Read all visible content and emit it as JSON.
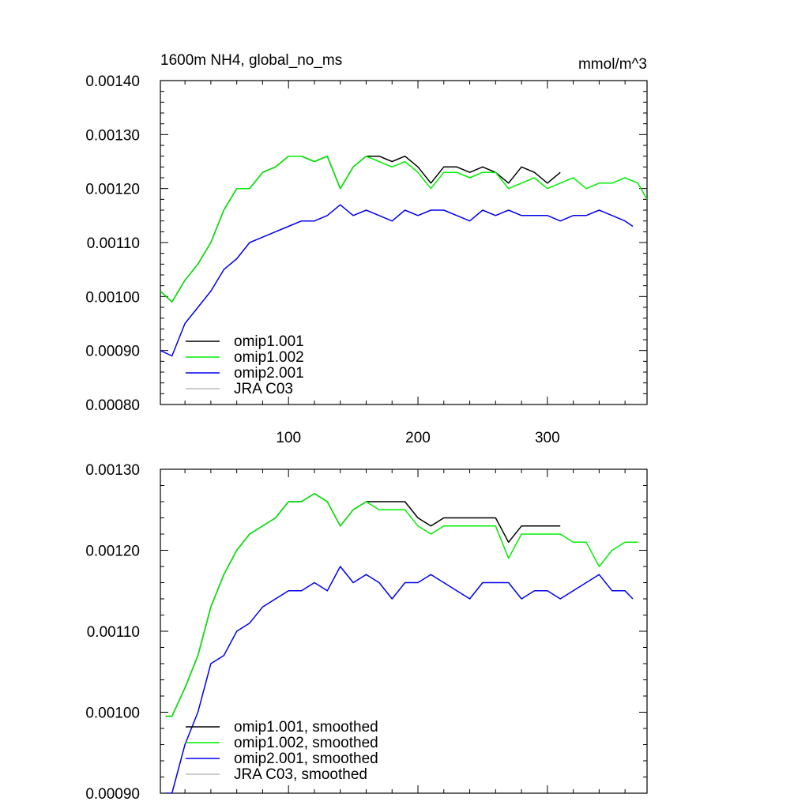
{
  "title": "1600m NH4, global_no_ms",
  "units": "mmol/m^3",
  "colors": {
    "omip1_001": "#000000",
    "omip1_002": "#00ee00",
    "omip2_001": "#0000ee",
    "jra_c03": "#bbbbbb"
  },
  "chart_data": [
    {
      "type": "line",
      "title": "1600m NH4, global_no_ms",
      "units": "mmol/m^3",
      "xlabel": "",
      "ylabel": "",
      "xlim": [
        1,
        377
      ],
      "ylim": [
        0.0008,
        0.0014
      ],
      "xticks": [
        100,
        200,
        300
      ],
      "xtick_labels": [
        "100",
        "200",
        "300"
      ],
      "yticks": [
        0.0008,
        0.0009,
        0.001,
        0.0011,
        0.0012,
        0.0013,
        0.0014
      ],
      "ytick_labels": [
        "0.00080",
        "0.00090",
        "0.00100",
        "0.00110",
        "0.00120",
        "0.00130",
        "0.00140"
      ],
      "legend_position": "bottom-left",
      "series": [
        {
          "name": "omip1.001",
          "color_key": "omip1_001",
          "x": [
            1,
            10,
            20,
            30,
            40,
            50,
            60,
            70,
            80,
            90,
            100,
            110,
            120,
            130,
            140,
            150,
            160,
            170,
            180,
            190,
            200,
            210,
            220,
            230,
            240,
            250,
            260,
            270,
            280,
            290,
            300,
            310
          ],
          "y": [
            0.00101,
            0.00099,
            0.00103,
            0.00106,
            0.0011,
            0.00116,
            0.0012,
            0.0012,
            0.00123,
            0.00124,
            0.00126,
            0.00126,
            0.00125,
            0.00126,
            0.0012,
            0.00124,
            0.00126,
            0.00126,
            0.00125,
            0.00126,
            0.00124,
            0.00121,
            0.00124,
            0.00124,
            0.00123,
            0.00124,
            0.00123,
            0.00121,
            0.00124,
            0.00123,
            0.00121,
            0.00123
          ]
        },
        {
          "name": "omip1.002",
          "color_key": "omip1_002",
          "x": [
            1,
            10,
            20,
            30,
            40,
            50,
            60,
            70,
            80,
            90,
            100,
            110,
            120,
            130,
            140,
            150,
            160,
            170,
            180,
            190,
            200,
            210,
            220,
            230,
            240,
            250,
            260,
            270,
            280,
            290,
            300,
            310,
            320,
            330,
            340,
            350,
            360,
            370,
            377
          ],
          "y": [
            0.00101,
            0.00099,
            0.00103,
            0.00106,
            0.0011,
            0.00116,
            0.0012,
            0.0012,
            0.00123,
            0.00124,
            0.00126,
            0.00126,
            0.00125,
            0.00126,
            0.0012,
            0.00124,
            0.00126,
            0.00125,
            0.00124,
            0.00125,
            0.00123,
            0.0012,
            0.00123,
            0.00123,
            0.00122,
            0.00123,
            0.00123,
            0.0012,
            0.00121,
            0.00122,
            0.0012,
            0.00121,
            0.00122,
            0.0012,
            0.00121,
            0.00121,
            0.00122,
            0.00121,
            0.00118
          ]
        },
        {
          "name": "omip2.001",
          "color_key": "omip2_001",
          "x": [
            1,
            10,
            20,
            30,
            40,
            50,
            60,
            70,
            80,
            90,
            100,
            110,
            120,
            130,
            140,
            150,
            160,
            170,
            180,
            190,
            200,
            210,
            220,
            230,
            240,
            250,
            260,
            270,
            280,
            290,
            300,
            310,
            320,
            330,
            340,
            350,
            360,
            366
          ],
          "y": [
            0.0009,
            0.00089,
            0.00095,
            0.00098,
            0.00101,
            0.00105,
            0.00107,
            0.0011,
            0.00111,
            0.00112,
            0.00113,
            0.00114,
            0.00114,
            0.00115,
            0.00117,
            0.00115,
            0.00116,
            0.00115,
            0.00114,
            0.00116,
            0.00115,
            0.00116,
            0.00116,
            0.00115,
            0.00114,
            0.00116,
            0.00115,
            0.00116,
            0.00115,
            0.00115,
            0.00115,
            0.00114,
            0.00115,
            0.00115,
            0.00116,
            0.00115,
            0.00114,
            0.00113
          ]
        },
        {
          "name": "JRA C03",
          "color_key": "jra_c03",
          "x": [],
          "y": []
        }
      ]
    },
    {
      "type": "line",
      "title": "",
      "xlabel": "",
      "ylabel": "",
      "xlim": [
        1,
        377
      ],
      "ylim": [
        0.0009,
        0.0013
      ],
      "xticks": [
        100,
        200,
        300
      ],
      "xtick_labels": [],
      "yticks": [
        0.0009,
        0.001,
        0.0011,
        0.0012,
        0.0013
      ],
      "ytick_labels": [
        "0.00090",
        "0.00100",
        "0.00110",
        "0.00120",
        "0.00130"
      ],
      "legend_position": "bottom-left",
      "series": [
        {
          "name": "omip1.001, smoothed",
          "color_key": "omip1_001",
          "x": [
            5,
            10,
            20,
            30,
            40,
            50,
            60,
            70,
            80,
            90,
            100,
            110,
            120,
            130,
            140,
            150,
            160,
            170,
            180,
            190,
            200,
            210,
            220,
            230,
            240,
            250,
            260,
            270,
            280,
            290,
            300,
            310
          ],
          "y": [
            0.000995,
            0.000995,
            0.00103,
            0.00107,
            0.00113,
            0.00117,
            0.0012,
            0.00122,
            0.00123,
            0.00124,
            0.00126,
            0.00126,
            0.00127,
            0.00126,
            0.00123,
            0.00125,
            0.00126,
            0.00126,
            0.00126,
            0.00126,
            0.00124,
            0.00123,
            0.00124,
            0.00124,
            0.00124,
            0.00124,
            0.00124,
            0.00121,
            0.00123,
            0.00123,
            0.00123,
            0.00123
          ]
        },
        {
          "name": "omip1.002, smoothed",
          "color_key": "omip1_002",
          "x": [
            5,
            10,
            20,
            30,
            40,
            50,
            60,
            70,
            80,
            90,
            100,
            110,
            120,
            130,
            140,
            150,
            160,
            170,
            180,
            190,
            200,
            210,
            220,
            230,
            240,
            250,
            260,
            270,
            280,
            290,
            300,
            310,
            320,
            330,
            340,
            350,
            360,
            370
          ],
          "y": [
            0.000995,
            0.000995,
            0.00103,
            0.00107,
            0.00113,
            0.00117,
            0.0012,
            0.00122,
            0.00123,
            0.00124,
            0.00126,
            0.00126,
            0.00127,
            0.00126,
            0.00123,
            0.00125,
            0.00126,
            0.00125,
            0.00125,
            0.00125,
            0.00123,
            0.00122,
            0.00123,
            0.00123,
            0.00123,
            0.00123,
            0.00123,
            0.00119,
            0.00122,
            0.00122,
            0.00122,
            0.00122,
            0.00121,
            0.00121,
            0.00118,
            0.0012,
            0.00121,
            0.00121
          ]
        },
        {
          "name": "omip2.001, smoothed",
          "color_key": "omip2_001",
          "x": [
            5,
            10,
            20,
            30,
            40,
            50,
            60,
            70,
            80,
            90,
            100,
            110,
            120,
            130,
            140,
            150,
            160,
            170,
            180,
            190,
            200,
            210,
            220,
            230,
            240,
            250,
            260,
            270,
            280,
            290,
            300,
            310,
            320,
            330,
            340,
            350,
            360,
            366
          ],
          "y": [
            0.0009,
            0.0009,
            0.00096,
            0.001,
            0.00106,
            0.00107,
            0.0011,
            0.00111,
            0.00113,
            0.00114,
            0.00115,
            0.00115,
            0.00116,
            0.00115,
            0.00118,
            0.00116,
            0.00117,
            0.00116,
            0.00114,
            0.00116,
            0.00116,
            0.00117,
            0.00116,
            0.00115,
            0.00114,
            0.00116,
            0.00116,
            0.00116,
            0.00114,
            0.00115,
            0.00115,
            0.00114,
            0.00115,
            0.00116,
            0.00117,
            0.00115,
            0.00115,
            0.00114
          ]
        },
        {
          "name": "JRA C03, smoothed",
          "color_key": "jra_c03",
          "x": [],
          "y": []
        }
      ]
    }
  ]
}
